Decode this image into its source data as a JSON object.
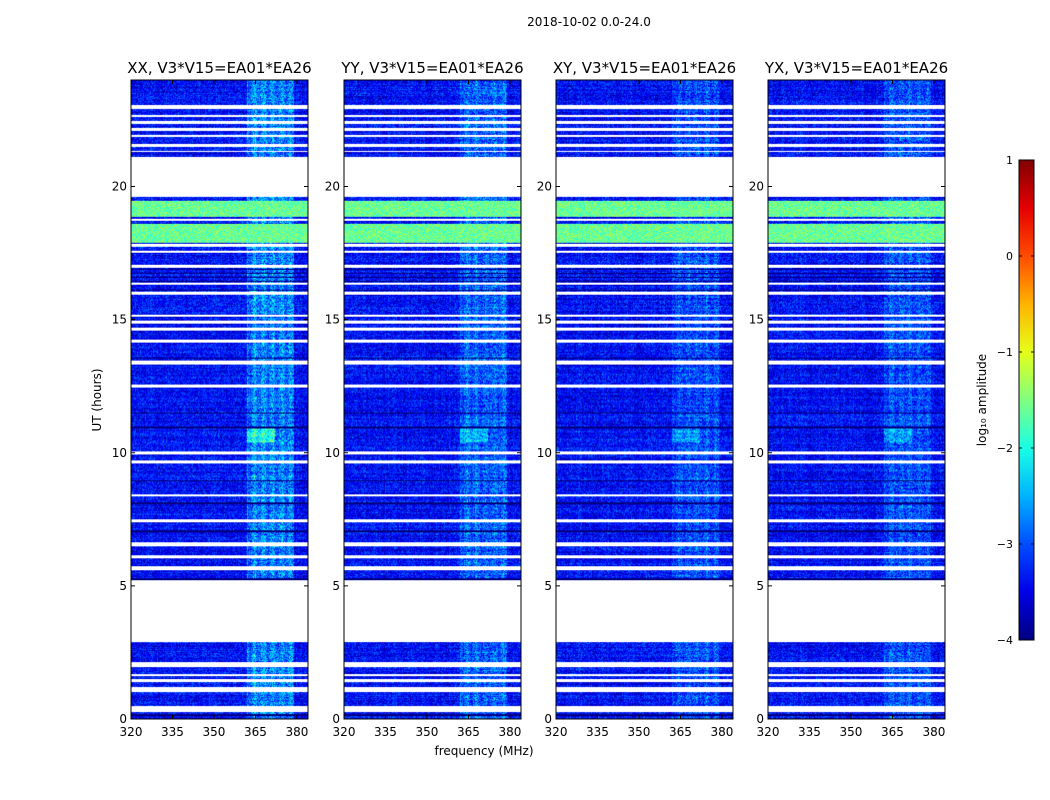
{
  "chart_data": {
    "type": "heatmap",
    "suptitle": "2018-10-02 0.0-24.0",
    "xlabel": "frequency (MHz)",
    "ylabel": "UT (hours)",
    "xlim": [
      320,
      384
    ],
    "ylim": [
      0,
      24
    ],
    "xticks": [
      320,
      335,
      350,
      365,
      380
    ],
    "yticks": [
      0,
      5,
      10,
      15,
      20
    ],
    "panels": [
      {
        "title": "XX, V3*V15=EA01*EA26",
        "rfi_strength": 1.0
      },
      {
        "title": "YY, V3*V15=EA01*EA26",
        "rfi_strength": 0.75
      },
      {
        "title": "XY, V3*V15=EA01*EA26",
        "rfi_strength": 0.55
      },
      {
        "title": "YX, V3*V15=EA01*EA26",
        "rfi_strength": 0.6
      }
    ],
    "colorbar": {
      "label": "log₁₀ amplitude",
      "range": [
        -4,
        1
      ],
      "ticks": [
        "1",
        "0",
        "−1",
        "−2",
        "−3",
        "−4"
      ],
      "colormap": "jet"
    },
    "flagged_ut_ranges": [
      [
        0.28,
        0.5
      ],
      [
        1.0,
        1.2
      ],
      [
        1.4,
        1.5
      ],
      [
        1.6,
        1.7
      ],
      [
        1.95,
        2.15
      ],
      [
        2.9,
        5.2
      ],
      [
        5.6,
        5.75
      ],
      [
        6.05,
        6.15
      ],
      [
        6.5,
        6.65
      ],
      [
        7.4,
        7.5
      ],
      [
        8.35,
        8.45
      ],
      [
        9.6,
        9.7
      ],
      [
        9.95,
        10.05
      ],
      [
        12.45,
        12.55
      ],
      [
        13.3,
        13.45
      ],
      [
        14.15,
        14.25
      ],
      [
        14.6,
        14.7
      ],
      [
        14.85,
        14.95
      ],
      [
        15.1,
        15.2
      ],
      [
        15.95,
        16.05
      ],
      [
        16.3,
        16.4
      ],
      [
        16.95,
        17.05
      ],
      [
        17.5,
        17.6
      ],
      [
        17.75,
        17.85
      ],
      [
        18.7,
        18.8
      ],
      [
        19.6,
        21.1
      ],
      [
        21.3,
        21.35
      ],
      [
        21.5,
        21.6
      ],
      [
        21.85,
        21.95
      ],
      [
        22.1,
        22.2
      ],
      [
        22.35,
        22.45
      ],
      [
        22.6,
        22.7
      ],
      [
        22.9,
        23.05
      ]
    ],
    "dark_ut_lines": [
      0.15,
      5.2,
      5.25,
      6.6,
      7.05,
      8.1,
      8.95,
      10.95,
      11.5,
      13.55,
      16.1,
      16.45,
      16.6,
      16.75,
      16.9
    ],
    "bright_ut_bands": [
      {
        "range": [
          17.9,
          18.6
        ],
        "level": -1.6
      },
      {
        "range": [
          18.85,
          19.45
        ],
        "level": -1.6
      }
    ],
    "rfi_band_mhz": [
      362,
      379
    ],
    "rfi_peak_ut": [
      10.4,
      11.0
    ],
    "rfi_peak_mhz": [
      362,
      372
    ]
  }
}
